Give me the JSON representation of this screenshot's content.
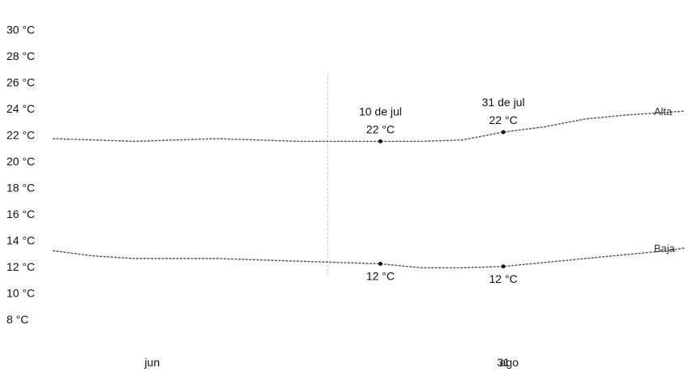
{
  "chart_data": {
    "type": "line",
    "title": "",
    "xlabel": "",
    "ylabel": "",
    "y_ticks": [
      "30 °C",
      "28 °C",
      "26 °C",
      "24 °C",
      "22 °C",
      "20 °C",
      "18 °C",
      "16 °C",
      "14 °C",
      "12 °C",
      "10 °C",
      "8 °C"
    ],
    "y_tick_values": [
      30,
      28,
      26,
      24,
      22,
      20,
      18,
      16,
      14,
      12,
      10,
      8
    ],
    "x_ticks": [
      {
        "label": "jun",
        "x": "2024-06-01"
      },
      {
        "label": "31",
        "x": "2024-07-31"
      },
      {
        "label": "ago",
        "x": "2024-08-01"
      }
    ],
    "x_range": [
      "2024-05-15",
      "2024-08-31"
    ],
    "ylim": [
      7,
      31
    ],
    "grid": false,
    "marker_line": {
      "x": "2024-07-01"
    },
    "series": [
      {
        "name": "Alta",
        "color": "#333333",
        "points": [
          {
            "x": "2024-05-15",
            "y": 21.7
          },
          {
            "x": "2024-05-22",
            "y": 21.6
          },
          {
            "x": "2024-05-29",
            "y": 21.5
          },
          {
            "x": "2024-06-05",
            "y": 21.6
          },
          {
            "x": "2024-06-12",
            "y": 21.7
          },
          {
            "x": "2024-06-19",
            "y": 21.6
          },
          {
            "x": "2024-06-26",
            "y": 21.5
          },
          {
            "x": "2024-07-03",
            "y": 21.5
          },
          {
            "x": "2024-07-10",
            "y": 21.5
          },
          {
            "x": "2024-07-17",
            "y": 21.5
          },
          {
            "x": "2024-07-24",
            "y": 21.6
          },
          {
            "x": "2024-07-31",
            "y": 22.2
          },
          {
            "x": "2024-08-07",
            "y": 22.6
          },
          {
            "x": "2024-08-14",
            "y": 23.2
          },
          {
            "x": "2024-08-21",
            "y": 23.5
          },
          {
            "x": "2024-08-28",
            "y": 23.7
          },
          {
            "x": "2024-08-31",
            "y": 23.8
          }
        ]
      },
      {
        "name": "Baja",
        "color": "#333333",
        "points": [
          {
            "x": "2024-05-15",
            "y": 13.2
          },
          {
            "x": "2024-05-22",
            "y": 12.8
          },
          {
            "x": "2024-05-29",
            "y": 12.6
          },
          {
            "x": "2024-06-05",
            "y": 12.6
          },
          {
            "x": "2024-06-12",
            "y": 12.6
          },
          {
            "x": "2024-06-19",
            "y": 12.5
          },
          {
            "x": "2024-06-26",
            "y": 12.4
          },
          {
            "x": "2024-07-03",
            "y": 12.3
          },
          {
            "x": "2024-07-10",
            "y": 12.2
          },
          {
            "x": "2024-07-17",
            "y": 11.9
          },
          {
            "x": "2024-07-24",
            "y": 11.9
          },
          {
            "x": "2024-07-31",
            "y": 12.0
          },
          {
            "x": "2024-08-07",
            "y": 12.3
          },
          {
            "x": "2024-08-14",
            "y": 12.6
          },
          {
            "x": "2024-08-21",
            "y": 12.9
          },
          {
            "x": "2024-08-28",
            "y": 13.2
          },
          {
            "x": "2024-08-31",
            "y": 13.4
          }
        ]
      }
    ],
    "annotations": [
      {
        "date_label": "10 de jul",
        "x": "2024-07-10",
        "high_label": "22 °C",
        "high": 21.5,
        "low_label": "12 °C",
        "low": 12.2
      },
      {
        "date_label": "31 de jul",
        "x": "2024-07-31",
        "high_label": "22 °C",
        "high": 22.2,
        "low_label": "12 °C",
        "low": 12.0
      }
    ]
  }
}
